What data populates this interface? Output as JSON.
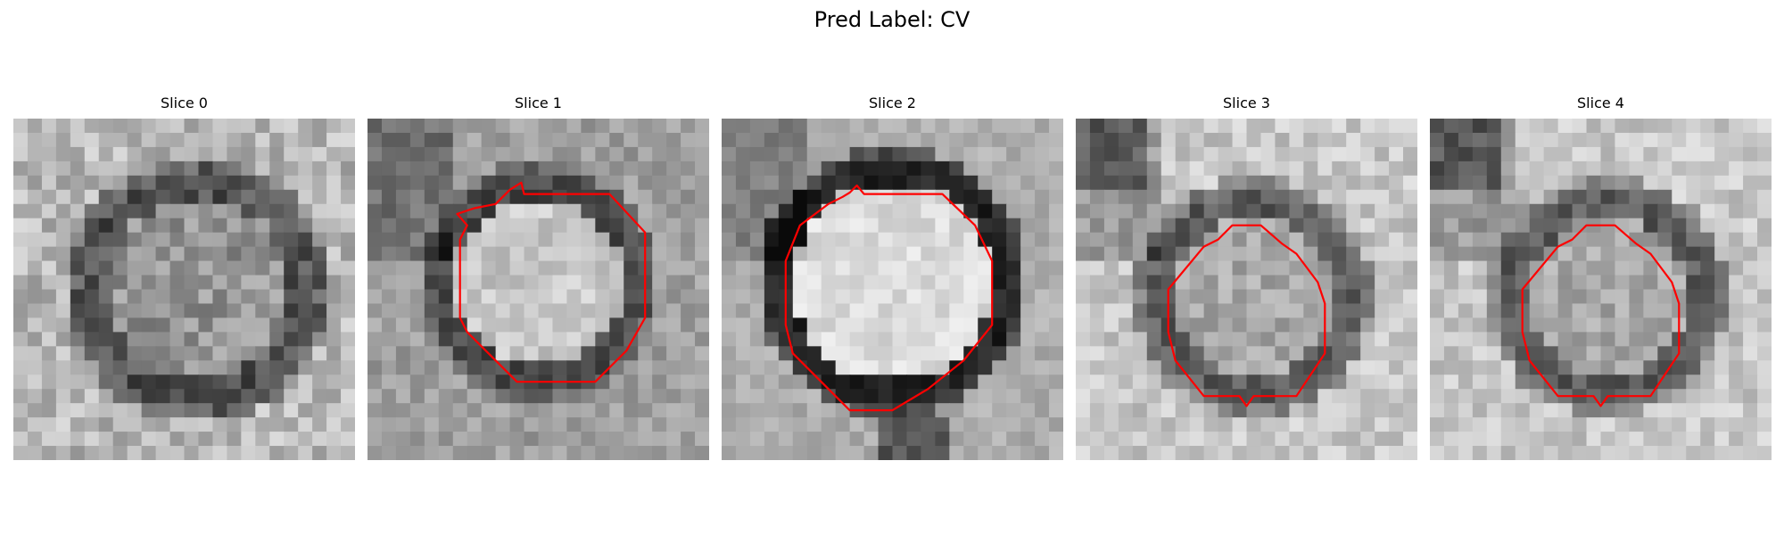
{
  "figure": {
    "title": "Pred Label: CV"
  },
  "panels": [
    {
      "title": "Slice 0",
      "has_contour": false
    },
    {
      "title": "Slice 1",
      "has_contour": true
    },
    {
      "title": "Slice 2",
      "has_contour": true
    },
    {
      "title": "Slice 3",
      "has_contour": true
    },
    {
      "title": "Slice 4",
      "has_contour": true
    }
  ],
  "colors": {
    "contour": "#ff0000",
    "background": "#ffffff",
    "colormap": "gray"
  }
}
